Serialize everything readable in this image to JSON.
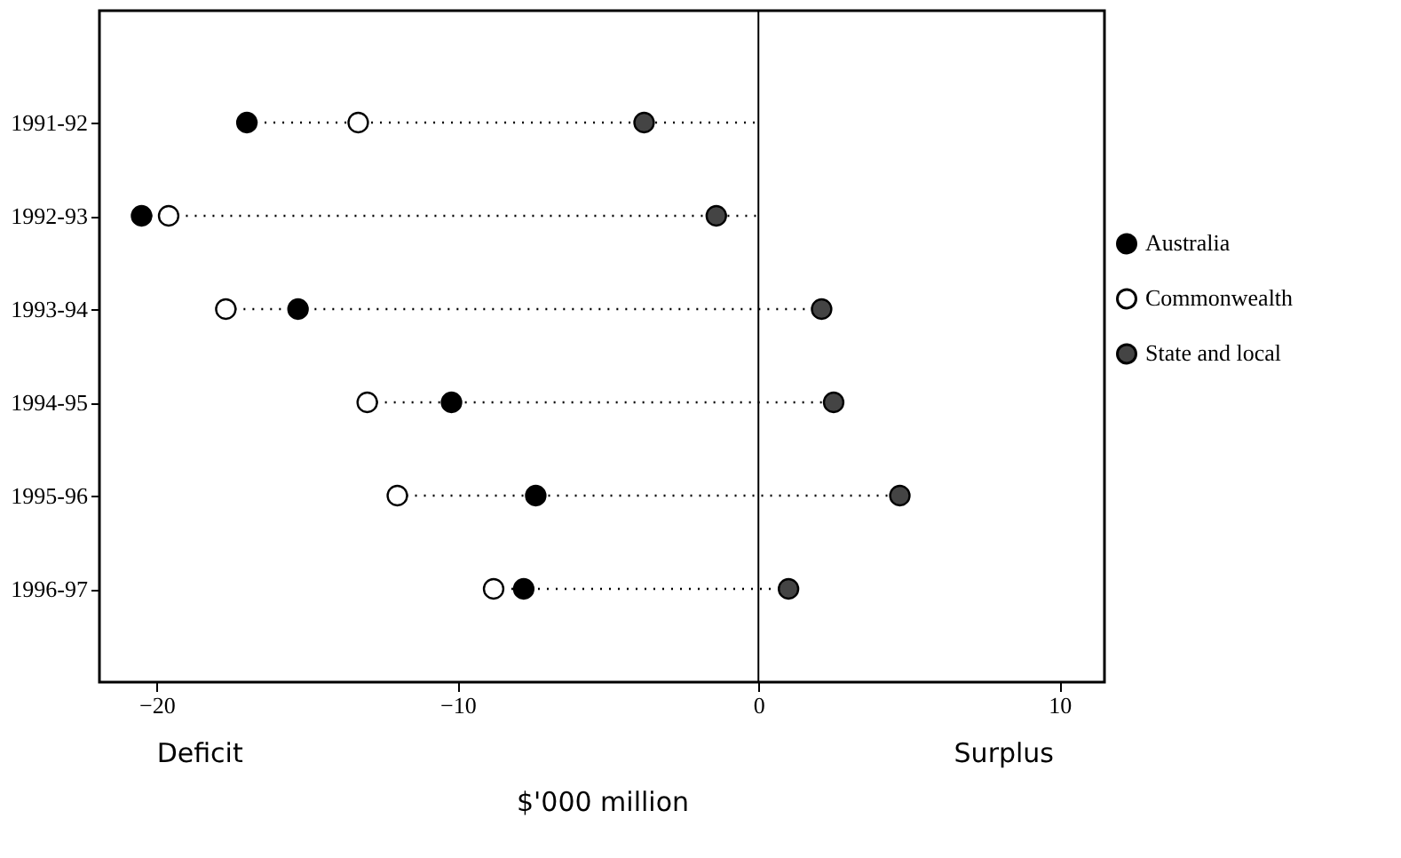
{
  "chart_data": {
    "type": "scatter",
    "orientation": "horizontal",
    "xlabel": "$'000 million",
    "categories": [
      "1991-92",
      "1992-93",
      "1993-94",
      "1994-95",
      "1995-96",
      "1996-97"
    ],
    "series": [
      {
        "name": "Australia",
        "color": "#000000",
        "values": [
          -17.0,
          -20.5,
          -15.3,
          -10.2,
          -7.4,
          -7.8
        ]
      },
      {
        "name": "Commonwealth",
        "color": "#ffffff",
        "values": [
          -13.3,
          -19.6,
          -17.7,
          -13.0,
          -12.0,
          -8.8
        ]
      },
      {
        "name": "State and local",
        "color": "#444444",
        "values": [
          -3.8,
          -1.4,
          2.1,
          2.5,
          4.7,
          1.0
        ]
      }
    ],
    "xlim": [
      -21.9,
      11.5
    ],
    "xticks": [
      -20,
      -10,
      0,
      10
    ],
    "ref_lines": [
      {
        "axis": "x",
        "value": 0,
        "label": null
      }
    ],
    "annotations": [
      "Deficit",
      "Surplus"
    ],
    "legend": "right",
    "marker": "circle",
    "grid": false
  }
}
